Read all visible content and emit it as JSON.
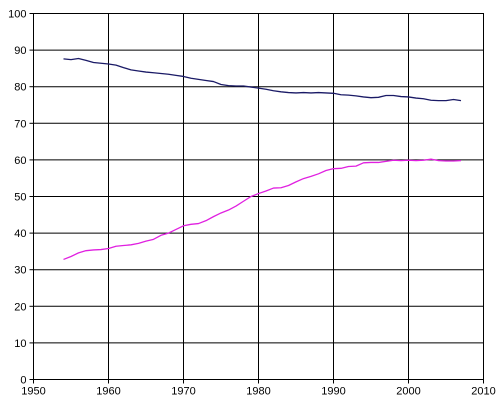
{
  "chart_data": {
    "type": "line",
    "title": "",
    "xlabel": "",
    "ylabel": "",
    "xlim": [
      1950,
      2010
    ],
    "ylim": [
      0,
      100
    ],
    "x_ticks": [
      1950,
      1960,
      1970,
      1980,
      1990,
      2000,
      2010
    ],
    "y_ticks": [
      0,
      10,
      20,
      30,
      40,
      50,
      60,
      70,
      80,
      90,
      100
    ],
    "grid": true,
    "legend": "none",
    "series": [
      {
        "color": "#1a1a66",
        "points": [
          [
            1954,
            87.6
          ],
          [
            1955,
            87.4
          ],
          [
            1956,
            87.7
          ],
          [
            1957,
            87.2
          ],
          [
            1958,
            86.6
          ],
          [
            1959,
            86.4
          ],
          [
            1960,
            86.2
          ],
          [
            1961,
            85.9
          ],
          [
            1962,
            85.2
          ],
          [
            1963,
            84.6
          ],
          [
            1964,
            84.3
          ],
          [
            1965,
            84.0
          ],
          [
            1966,
            83.8
          ],
          [
            1967,
            83.6
          ],
          [
            1968,
            83.4
          ],
          [
            1969,
            83.1
          ],
          [
            1970,
            82.8
          ],
          [
            1971,
            82.3
          ],
          [
            1972,
            82.0
          ],
          [
            1973,
            81.7
          ],
          [
            1974,
            81.4
          ],
          [
            1975,
            80.6
          ],
          [
            1976,
            80.3
          ],
          [
            1977,
            80.2
          ],
          [
            1978,
            80.2
          ],
          [
            1979,
            79.9
          ],
          [
            1980,
            79.6
          ],
          [
            1981,
            79.3
          ],
          [
            1982,
            78.9
          ],
          [
            1983,
            78.6
          ],
          [
            1984,
            78.4
          ],
          [
            1985,
            78.3
          ],
          [
            1986,
            78.4
          ],
          [
            1987,
            78.3
          ],
          [
            1988,
            78.4
          ],
          [
            1989,
            78.3
          ],
          [
            1990,
            78.2
          ],
          [
            1991,
            77.8
          ],
          [
            1992,
            77.7
          ],
          [
            1993,
            77.5
          ],
          [
            1994,
            77.2
          ],
          [
            1995,
            77.0
          ],
          [
            1996,
            77.1
          ],
          [
            1997,
            77.6
          ],
          [
            1998,
            77.6
          ],
          [
            1999,
            77.3
          ],
          [
            2000,
            77.2
          ],
          [
            2001,
            76.9
          ],
          [
            2002,
            76.7
          ],
          [
            2003,
            76.3
          ],
          [
            2004,
            76.2
          ],
          [
            2005,
            76.2
          ],
          [
            2006,
            76.5
          ],
          [
            2007,
            76.2
          ]
        ]
      },
      {
        "color": "#e020e0",
        "points": [
          [
            1954,
            32.8
          ],
          [
            1955,
            33.6
          ],
          [
            1956,
            34.6
          ],
          [
            1957,
            35.2
          ],
          [
            1958,
            35.4
          ],
          [
            1959,
            35.5
          ],
          [
            1960,
            35.8
          ],
          [
            1961,
            36.4
          ],
          [
            1962,
            36.6
          ],
          [
            1963,
            36.8
          ],
          [
            1964,
            37.2
          ],
          [
            1965,
            37.8
          ],
          [
            1966,
            38.3
          ],
          [
            1967,
            39.4
          ],
          [
            1968,
            40.0
          ],
          [
            1969,
            41.0
          ],
          [
            1970,
            42.0
          ],
          [
            1971,
            42.4
          ],
          [
            1972,
            42.6
          ],
          [
            1973,
            43.4
          ],
          [
            1974,
            44.5
          ],
          [
            1975,
            45.5
          ],
          [
            1976,
            46.3
          ],
          [
            1977,
            47.4
          ],
          [
            1978,
            48.7
          ],
          [
            1979,
            50.0
          ],
          [
            1980,
            50.8
          ],
          [
            1981,
            51.5
          ],
          [
            1982,
            52.3
          ],
          [
            1983,
            52.4
          ],
          [
            1984,
            53.0
          ],
          [
            1985,
            54.0
          ],
          [
            1986,
            54.9
          ],
          [
            1987,
            55.5
          ],
          [
            1988,
            56.2
          ],
          [
            1989,
            57.1
          ],
          [
            1990,
            57.6
          ],
          [
            1991,
            57.7
          ],
          [
            1992,
            58.2
          ],
          [
            1993,
            58.3
          ],
          [
            1994,
            59.2
          ],
          [
            1995,
            59.3
          ],
          [
            1996,
            59.3
          ],
          [
            1997,
            59.6
          ],
          [
            1998,
            59.9
          ],
          [
            1999,
            59.8
          ],
          [
            2000,
            59.9
          ],
          [
            2001,
            59.8
          ],
          [
            2002,
            59.9
          ],
          [
            2003,
            60.2
          ],
          [
            2004,
            59.8
          ],
          [
            2005,
            59.7
          ],
          [
            2006,
            59.7
          ],
          [
            2007,
            59.8
          ]
        ]
      }
    ]
  }
}
